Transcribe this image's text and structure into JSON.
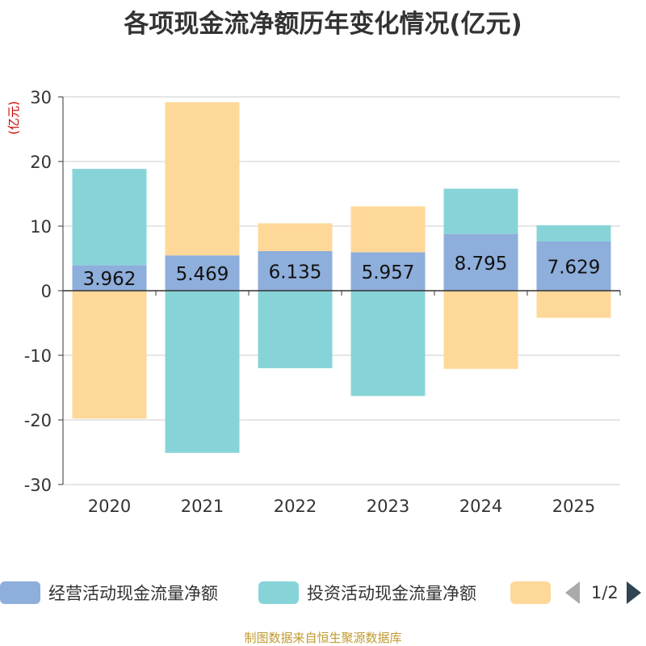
{
  "chart_data": {
    "type": "bar",
    "stacked": true,
    "title": "各项现金流净额历年变化情况(亿元)",
    "ylabel": "(亿元)",
    "categories": [
      "2020",
      "2021",
      "2022",
      "2023",
      "2024",
      "2025"
    ],
    "ylim": [
      -30,
      30
    ],
    "yticks": [
      30,
      20,
      10,
      0,
      -10,
      -20,
      -30
    ],
    "grid": true,
    "series": [
      {
        "name": "经营活动现金流量净额",
        "color": "#8eaedb",
        "values": [
          3.962,
          5.469,
          6.135,
          5.957,
          8.795,
          7.629
        ],
        "data_labels": [
          "3.962",
          "5.469",
          "6.135",
          "5.957",
          "8.795",
          "7.629"
        ]
      },
      {
        "name": "投资活动现金流量净额",
        "color": "#87d4d8",
        "values": [
          14.9,
          -25.1,
          -12.0,
          -16.3,
          7.0,
          2.5
        ]
      },
      {
        "name": "",
        "color": "#fed898",
        "values": [
          -19.8,
          23.7,
          4.3,
          7.1,
          -12.1,
          -4.2
        ]
      }
    ],
    "legend_position": "bottom"
  },
  "legend": {
    "items": [
      {
        "label": "经营活动现金流量净额",
        "color": "#8eaedb"
      },
      {
        "label": "投资活动现金流量净额",
        "color": "#87d4d8"
      },
      {
        "label": "",
        "color": "#fed898"
      }
    ],
    "page_indicator": "1/2"
  },
  "footer": {
    "source": "制图数据来自恒生聚源数据库"
  }
}
